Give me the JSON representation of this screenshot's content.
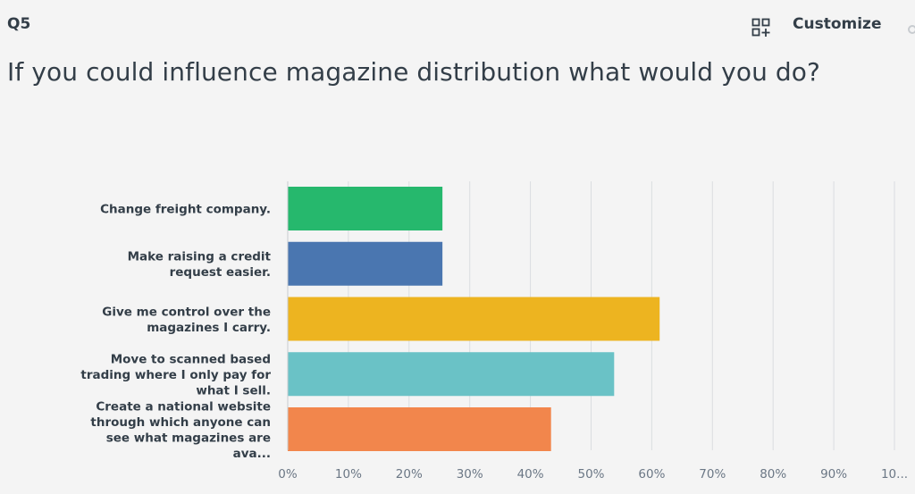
{
  "header": {
    "question_number": "Q5",
    "customize_label": "Customize",
    "customize_icon": "grid-add-icon"
  },
  "question": {
    "title": "If you could influence magazine distribution what would you do?"
  },
  "chart_data": {
    "type": "bar",
    "orientation": "horizontal",
    "title": "",
    "xlabel": "",
    "ylabel": "",
    "xlim": [
      0,
      100
    ],
    "grid": true,
    "categories": [
      [
        "Change freight company."
      ],
      [
        "Make raising a credit",
        "request easier."
      ],
      [
        "Give me control over the",
        "magazines I carry."
      ],
      [
        "Move to scanned based",
        "trading where I only pay for",
        "what I sell."
      ],
      [
        "Create a national website",
        "through which anyone can",
        "see what magazines are",
        "ava..."
      ]
    ],
    "values": [
      25.5,
      25.5,
      61.3,
      53.8,
      43.4
    ],
    "colors": [
      "#26b86d",
      "#4a76b0",
      "#edb420",
      "#6ac2c6",
      "#f2864c"
    ],
    "ticks": [
      "0%",
      "10%",
      "20%",
      "30%",
      "40%",
      "50%",
      "60%",
      "70%",
      "80%",
      "90%",
      "10..."
    ]
  }
}
